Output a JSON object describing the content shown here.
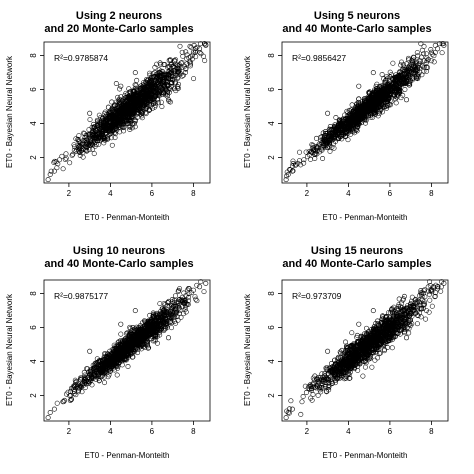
{
  "chart_data": [
    {
      "type": "scatter",
      "title_line1": "Using 2 neurons",
      "title_line2": "and 20 Monte-Carlo samples",
      "xlabel": "ET0 - Penman-Monteith",
      "ylabel": "ET0 - Bayesian Neural Network",
      "annotation": "R²=0.9785874",
      "xlim": [
        0.8,
        8.8
      ],
      "ylim": [
        0.5,
        8.8
      ],
      "xticks": [
        2,
        4,
        6,
        8
      ],
      "yticks": [
        2,
        4,
        6,
        8
      ],
      "grid": false,
      "marker": "open-circle",
      "fit": {
        "slope": 0.95,
        "intercept": 0.25,
        "noise": 0.38
      },
      "points_summary": {
        "x_range": [
          1.0,
          8.6
        ],
        "y_range": [
          0.6,
          8.6
        ],
        "pattern": "dense linear band along y ≈ x"
      }
    },
    {
      "type": "scatter",
      "title_line1": "Using 5 neurons",
      "title_line2": "and 40 Monte-Carlo samples",
      "xlabel": "ET0 - Penman-Monteith",
      "ylabel": "ET0 - Bayesian Neural Network",
      "annotation": "R²=0.9856427",
      "xlim": [
        0.8,
        8.8
      ],
      "ylim": [
        0.5,
        8.8
      ],
      "xticks": [
        2,
        4,
        6,
        8
      ],
      "yticks": [
        2,
        4,
        6,
        8
      ],
      "grid": false,
      "marker": "open-circle",
      "fit": {
        "slope": 0.97,
        "intercept": 0.15,
        "noise": 0.3
      },
      "points_summary": {
        "x_range": [
          1.0,
          8.6
        ],
        "y_range": [
          0.8,
          8.7
        ],
        "pattern": "dense linear band along y ≈ x"
      }
    },
    {
      "type": "scatter",
      "title_line1": "Using 10 neurons",
      "title_line2": "and 40 Monte-Carlo samples",
      "xlabel": "ET0 - Penman-Monteith",
      "ylabel": "ET0 - Bayesian Neural Network",
      "annotation": "R²=0.9875177",
      "xlim": [
        0.8,
        8.8
      ],
      "ylim": [
        0.5,
        8.8
      ],
      "xticks": [
        2,
        4,
        6,
        8
      ],
      "yticks": [
        2,
        4,
        6,
        8
      ],
      "grid": false,
      "marker": "open-circle",
      "fit": {
        "slope": 0.97,
        "intercept": 0.15,
        "noise": 0.28
      },
      "points_summary": {
        "x_range": [
          1.0,
          8.6
        ],
        "y_range": [
          0.8,
          8.6
        ],
        "pattern": "dense linear band along y ≈ x"
      }
    },
    {
      "type": "scatter",
      "title_line1": "Using 15 neurons",
      "title_line2": "and 40 Monte-Carlo samples",
      "xlabel": "ET0 - Penman-Monteith",
      "ylabel": "ET0 - Bayesian Neural Network",
      "annotation": "R²=0.973709",
      "xlim": [
        0.8,
        8.8
      ],
      "ylim": [
        0.5,
        8.8
      ],
      "xticks": [
        2,
        4,
        6,
        8
      ],
      "yticks": [
        2,
        4,
        6,
        8
      ],
      "grid": false,
      "marker": "open-circle",
      "fit": {
        "slope": 0.96,
        "intercept": 0.2,
        "noise": 0.36
      },
      "points_summary": {
        "x_range": [
          1.0,
          8.6
        ],
        "y_range": [
          0.8,
          8.6
        ],
        "pattern": "dense linear band along y ≈ x"
      }
    }
  ]
}
